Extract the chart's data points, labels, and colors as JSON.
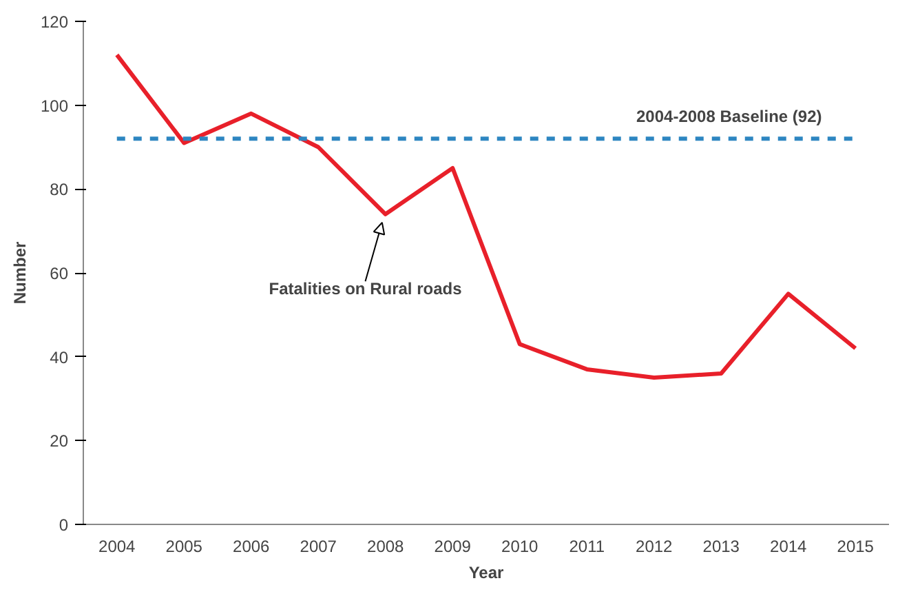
{
  "chart_data": {
    "type": "line",
    "xlabel": "Year",
    "ylabel": "Number",
    "categories": [
      "2004",
      "2005",
      "2006",
      "2007",
      "2008",
      "2009",
      "2010",
      "2011",
      "2012",
      "2013",
      "2014",
      "2015"
    ],
    "series": [
      {
        "color": "#e8202a",
        "values": [
          112,
          91,
          98,
          90,
          74,
          85,
          43,
          37,
          35,
          36,
          55,
          42
        ]
      }
    ],
    "ylim": [
      0,
      120
    ],
    "yticks": [
      0,
      20,
      40,
      60,
      80,
      100,
      120
    ],
    "grid": false,
    "marker": "none",
    "line_style": "solid",
    "ref_lines": [
      {
        "axis": "y",
        "value": 92,
        "label": "2004-2008 Baseline (92)",
        "color": "#2e86c1",
        "line_style": "dashed"
      }
    ],
    "annotations": [
      {
        "text": "Fatalities on Rural roads",
        "x": "2008",
        "y": 74
      }
    ]
  }
}
